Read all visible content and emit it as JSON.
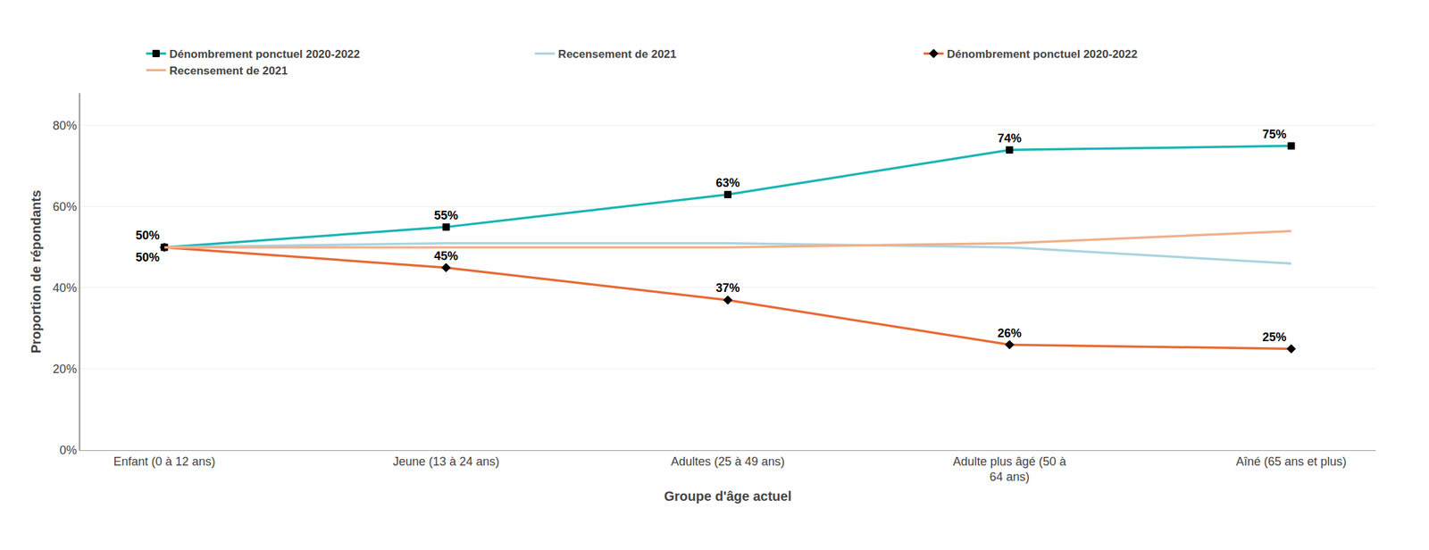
{
  "chart_data": {
    "type": "line",
    "categories": [
      "Enfant (0 à 12 ans)",
      "Jeune (13 à 24 ans)",
      "Adultes (25 à 49 ans)",
      "Adulte plus âgé (50 à\n64 ans)",
      "Aîné (65 ans et plus)"
    ],
    "series": [
      {
        "name": "Dénombrement ponctuel 2020-2022",
        "color": "#1ab5b5",
        "marker": "square",
        "values": [
          0.5,
          0.55,
          0.63,
          0.74,
          0.75
        ],
        "data_labels": true,
        "value_labels": [
          "50%",
          "55%",
          "63%",
          "74%",
          "75%"
        ]
      },
      {
        "name": "Recensement de 2021",
        "color": "#aad4e0",
        "values": [
          0.5,
          0.51,
          0.51,
          0.5,
          0.46
        ]
      },
      {
        "name": "Dénombrement ponctuel 2020-2022",
        "color": "#e86a35",
        "marker": "diamond",
        "values": [
          0.5,
          0.45,
          0.37,
          0.26,
          0.25
        ],
        "data_labels": true,
        "value_labels": [
          "50%",
          "45%",
          "37%",
          "26%",
          "25%"
        ]
      },
      {
        "name": "Recensement de 2021",
        "color": "#f0b08a",
        "values": [
          0.5,
          0.5,
          0.5,
          0.51,
          0.54
        ]
      }
    ],
    "xlabel": "Groupe d'âge actuel",
    "ylabel": "Proportion de répondants",
    "ylim": [
      0.0,
      0.88
    ],
    "yticks": [
      {
        "value": 0.0,
        "label": "0%"
      },
      {
        "value": 0.2,
        "label": "20%"
      },
      {
        "value": 0.4,
        "label": "40%"
      },
      {
        "value": 0.6,
        "label": "60%"
      },
      {
        "value": 0.8,
        "label": "80%"
      }
    ],
    "grid": true,
    "legend": "top"
  }
}
